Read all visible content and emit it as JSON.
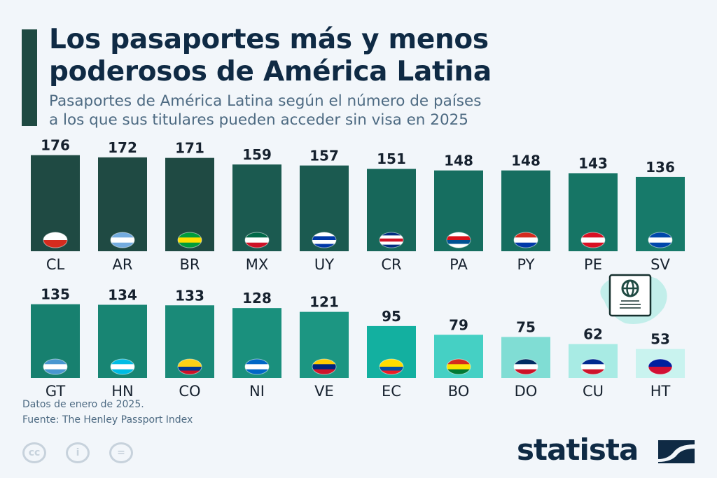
{
  "title_line1": "Los pasaportes más y menos",
  "title_line2": "poderosos de América Latina",
  "subtitle_line1": "Pasaportes de América Latina según el número de países",
  "subtitle_line2": "a los que sus titulares pueden acceder sin visa en 2025",
  "note": "Datos de enero de 2025.",
  "source": "Fuente: The Henley Passport Index",
  "license_icons": [
    "cc-icon",
    "attribution-icon",
    "no-derivatives-icon"
  ],
  "brand": "statista",
  "colors": {
    "title": "#0f2a44",
    "accent": "#1f4a42",
    "background": "#f2f6fa"
  },
  "chart_data": {
    "type": "bar",
    "title": "",
    "xlabel": "",
    "ylabel": "",
    "grid": false,
    "categories": [
      "CL",
      "AR",
      "BR",
      "MX",
      "UY",
      "CR",
      "PA",
      "PY",
      "PE",
      "SV",
      "GT",
      "HN",
      "CO",
      "NI",
      "VE",
      "EC",
      "BO",
      "DO",
      "CU",
      "HT"
    ],
    "values": [
      176,
      172,
      171,
      159,
      157,
      151,
      148,
      148,
      143,
      136,
      135,
      134,
      133,
      128,
      121,
      95,
      79,
      75,
      62,
      53
    ],
    "bar_colors": [
      "#1f4a43",
      "#1f4a43",
      "#1f4a43",
      "#1b5a50",
      "#1b5a50",
      "#17675a",
      "#166e60",
      "#166e60",
      "#167565",
      "#177a6a",
      "#17806f",
      "#188573",
      "#1a8a78",
      "#1a907d",
      "#1c9682",
      "#13b0a0",
      "#45d0c4",
      "#80ddd4",
      "#a8ebe4",
      "#c9f3ef"
    ],
    "flags": [
      [
        "#ffffff",
        "#d52b1e"
      ],
      [
        "#74acdf",
        "#ffffff",
        "#74acdf"
      ],
      [
        "#009c3b",
        "#ffdf00",
        "#009c3b"
      ],
      [
        "#006847",
        "#ffffff",
        "#ce1126"
      ],
      [
        "#ffffff",
        "#0038a8",
        "#ffffff",
        "#0038a8"
      ],
      [
        "#002b7f",
        "#ffffff",
        "#ce1126",
        "#ffffff",
        "#002b7f"
      ],
      [
        "#ffffff",
        "#da121a",
        "#005293",
        "#ffffff"
      ],
      [
        "#d52b1e",
        "#ffffff",
        "#0038a8"
      ],
      [
        "#d91023",
        "#ffffff",
        "#d91023"
      ],
      [
        "#0047ab",
        "#ffffff",
        "#0047ab"
      ],
      [
        "#4997d0",
        "#ffffff",
        "#4997d0"
      ],
      [
        "#00bce4",
        "#ffffff",
        "#00bce4"
      ],
      [
        "#fcd116",
        "#fcd116",
        "#003893",
        "#ce1126"
      ],
      [
        "#0067c6",
        "#ffffff",
        "#0067c6"
      ],
      [
        "#ffcc00",
        "#00247d",
        "#cf142b"
      ],
      [
        "#ffdd00",
        "#ffdd00",
        "#034ea2",
        "#ed1c24"
      ],
      [
        "#d52b1e",
        "#f9e300",
        "#007934"
      ],
      [
        "#002d62",
        "#ffffff",
        "#ce1126"
      ],
      [
        "#002a8f",
        "#ffffff",
        "#cf142b"
      ],
      [
        "#00209f",
        "#d21034"
      ]
    ]
  }
}
